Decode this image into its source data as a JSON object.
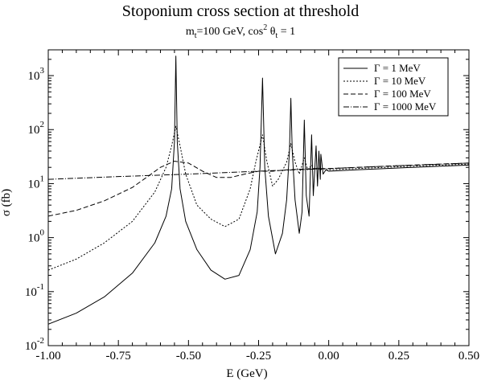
{
  "chart_data": {
    "type": "line",
    "title": "Stoponium cross section at threshold",
    "subtitle": "m_t=100 GeV, cos² θ_t = 1",
    "subtitle_parts": {
      "m": "m",
      "t1": "t",
      "mid": "=100 GeV, cos",
      "sq": "2",
      "theta": " θ",
      "t2": "t",
      "end": " = 1"
    },
    "xlabel": "E (GeV)",
    "ylabel": "σ (fb)",
    "xlim": [
      -1.0,
      0.5
    ],
    "ylim": [
      0.01,
      3000
    ],
    "yscale": "log",
    "x_ticks": [
      "-1.00",
      "-0.75",
      "-0.50",
      "-0.25",
      "0.00",
      "0.25",
      "0.50"
    ],
    "y_ticks": [
      {
        "base": "10",
        "exp": "-2"
      },
      {
        "base": "10",
        "exp": "-1"
      },
      {
        "base": "10",
        "exp": "0"
      },
      {
        "base": "10",
        "exp": "1"
      },
      {
        "base": "10",
        "exp": "2"
      },
      {
        "base": "10",
        "exp": "3"
      }
    ],
    "grid": false,
    "legend_position": "top-right",
    "peak_positions": [
      -0.545,
      -0.236,
      -0.135,
      -0.087,
      -0.061,
      -0.045,
      -0.035,
      -0.028,
      -0.022
    ],
    "series": [
      {
        "name": "Γ = 1 MeV",
        "dash": "none",
        "x": [
          -1.0,
          -0.9,
          -0.8,
          -0.7,
          -0.62,
          -0.58,
          -0.56,
          -0.55,
          -0.545,
          -0.54,
          -0.53,
          -0.51,
          -0.47,
          -0.42,
          -0.37,
          -0.32,
          -0.28,
          -0.255,
          -0.245,
          -0.236,
          -0.228,
          -0.215,
          -0.19,
          -0.165,
          -0.15,
          -0.14,
          -0.135,
          -0.13,
          -0.12,
          -0.105,
          -0.095,
          -0.087,
          -0.08,
          -0.07,
          -0.061,
          -0.055,
          -0.045,
          -0.04,
          -0.035,
          -0.03,
          -0.028,
          -0.02,
          -0.01,
          0.0,
          0.1,
          0.2,
          0.3,
          0.4,
          0.5
        ],
        "y": [
          0.025,
          0.04,
          0.08,
          0.22,
          0.8,
          2.5,
          8,
          60,
          2300,
          60,
          8,
          2.0,
          0.6,
          0.25,
          0.17,
          0.2,
          0.6,
          3,
          20,
          900,
          20,
          2.5,
          0.5,
          1.2,
          5,
          40,
          380,
          40,
          5,
          1.2,
          3,
          150,
          6,
          2.5,
          80,
          6,
          50,
          9,
          40,
          12,
          35,
          15,
          18,
          17,
          18,
          19,
          20,
          21,
          22
        ]
      },
      {
        "name": "Γ = 10 MeV",
        "dash": "2,2",
        "x": [
          -1.0,
          -0.9,
          -0.8,
          -0.7,
          -0.62,
          -0.58,
          -0.56,
          -0.545,
          -0.53,
          -0.51,
          -0.47,
          -0.42,
          -0.37,
          -0.32,
          -0.28,
          -0.26,
          -0.236,
          -0.22,
          -0.2,
          -0.18,
          -0.15,
          -0.135,
          -0.12,
          -0.105,
          -0.087,
          -0.075,
          -0.061,
          -0.05,
          -0.04,
          -0.03,
          -0.02,
          -0.01,
          0.0,
          0.1,
          0.2,
          0.3,
          0.4,
          0.5
        ],
        "y": [
          0.25,
          0.4,
          0.8,
          2.0,
          7,
          20,
          50,
          115,
          50,
          15,
          4,
          2.2,
          1.6,
          2.2,
          8,
          25,
          80,
          25,
          9,
          12,
          25,
          55,
          25,
          15,
          30,
          18,
          22,
          18,
          20,
          18,
          19,
          18,
          18,
          19,
          20,
          21,
          22,
          23
        ]
      },
      {
        "name": "Γ = 100 MeV",
        "dash": "6,3",
        "x": [
          -1.0,
          -0.9,
          -0.8,
          -0.7,
          -0.65,
          -0.6,
          -0.55,
          -0.5,
          -0.45,
          -0.4,
          -0.35,
          -0.3,
          -0.25,
          -0.2,
          -0.15,
          -0.1,
          -0.05,
          0.0,
          0.1,
          0.2,
          0.3,
          0.4,
          0.5
        ],
        "y": [
          2.5,
          3.2,
          4.8,
          8.5,
          13,
          20,
          26,
          24,
          17,
          13,
          13,
          15,
          17,
          17,
          18,
          18.5,
          19,
          19,
          20,
          21,
          22,
          23,
          24
        ]
      },
      {
        "name": "Γ = 1000 MeV",
        "dash": "7,2,1,2",
        "x": [
          -1.0,
          -0.75,
          -0.5,
          -0.25,
          0.0,
          0.25,
          0.5
        ],
        "y": [
          12,
          13.5,
          15,
          17,
          19,
          21.5,
          24
        ]
      }
    ]
  }
}
